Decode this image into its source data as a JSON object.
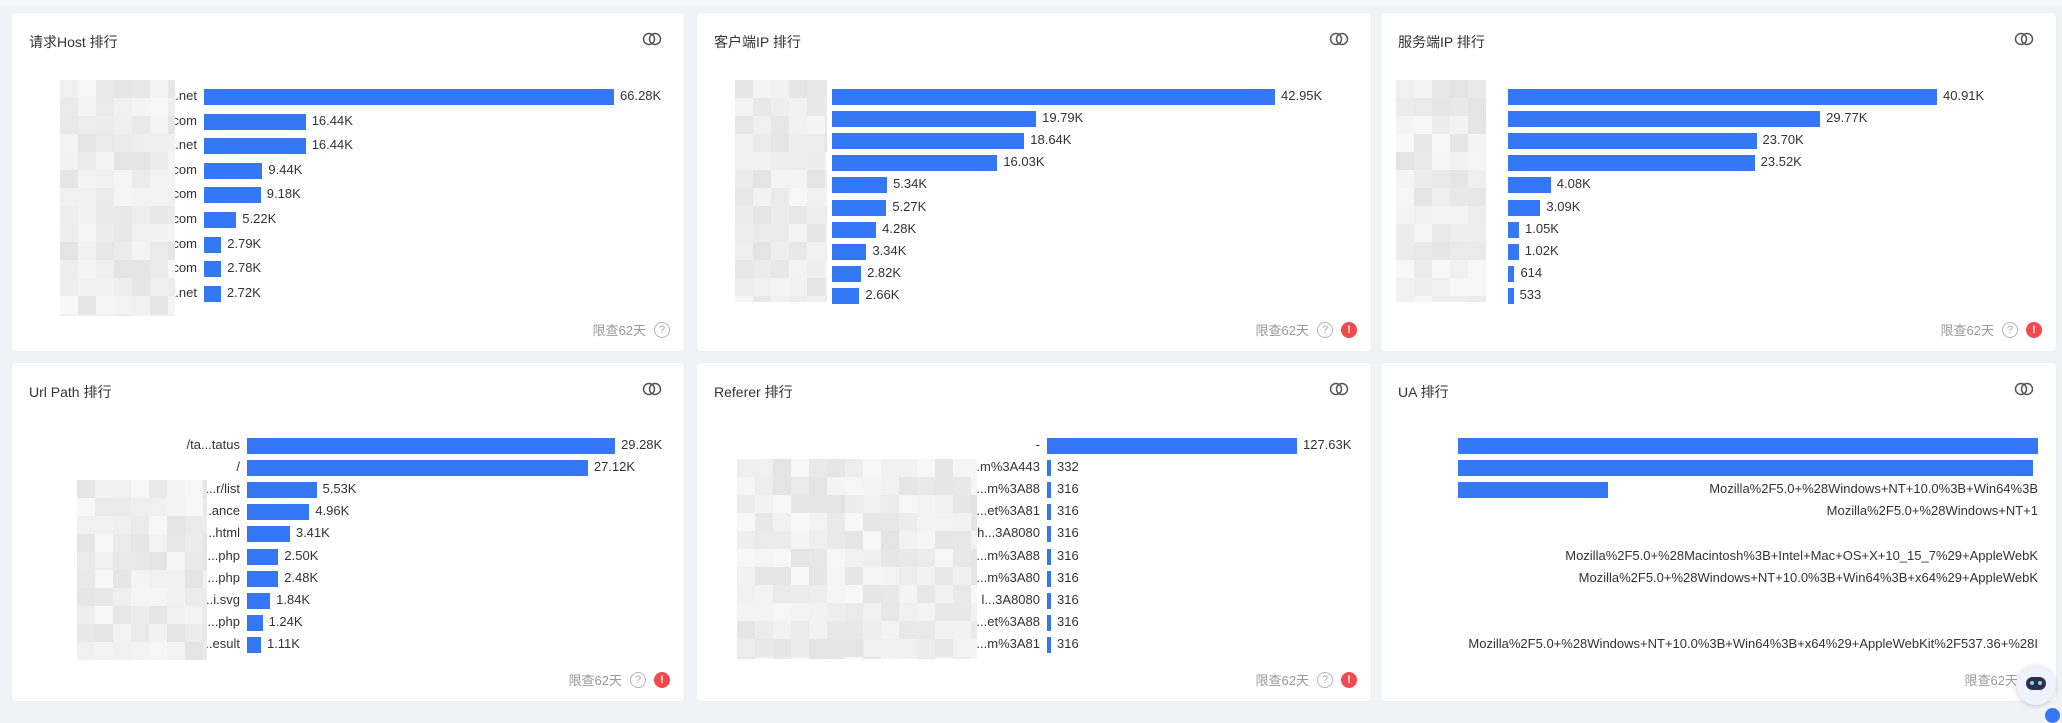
{
  "accent_color": "#3478f6",
  "footer_note": "限查62天",
  "help_icon": "question-circle-icon",
  "warn_icon": "exclamation-circle-icon",
  "view_icon": "view-toggle-icon",
  "chart_data": [
    {
      "type": "bar",
      "title": "请求Host 排行",
      "categories": [
        "c...t.net",
        "...com",
        "...t.net",
        "cls...com",
        "wls...com",
        "dap...com",
        "...com",
        "...com",
        "...t.net"
      ],
      "values": [
        66280,
        16440,
        16440,
        9440,
        9180,
        5220,
        2790,
        2780,
        2720
      ],
      "value_labels": [
        "66.28K",
        "16.44K",
        "16.44K",
        "9.44K",
        "9.18K",
        "5.22K",
        "2.79K",
        "2.78K",
        "2.72K"
      ],
      "footer_warning": false
    },
    {
      "type": "bar",
      "title": "客户端IP 排行",
      "categories": [
        "...19",
        "...93",
        "...233",
        "...154",
        "...153",
        "...236",
        "...30",
        "...81",
        "...235",
        "...155"
      ],
      "values": [
        42950,
        19790,
        18640,
        16030,
        5340,
        5270,
        4280,
        3340,
        2820,
        2660
      ],
      "value_labels": [
        "42.95K",
        "19.79K",
        "18.64K",
        "16.03K",
        "5.34K",
        "5.27K",
        "4.28K",
        "3.34K",
        "2.82K",
        "2.66K"
      ],
      "footer_warning": true
    },
    {
      "type": "bar",
      "title": "服务端IP 排行",
      "categories": [
        "...80",
        "...53",
        "-",
        "...53",
        "...46",
        "...90",
        "...78",
        "...86",
        "...03",
        "...13"
      ],
      "values": [
        40910,
        29770,
        23700,
        23520,
        4080,
        3090,
        1050,
        1020,
        614,
        533
      ],
      "value_labels": [
        "40.91K",
        "29.77K",
        "23.70K",
        "23.52K",
        "4.08K",
        "3.09K",
        "1.05K",
        "1.02K",
        "614",
        "533"
      ],
      "footer_warning": true
    },
    {
      "type": "bar",
      "title": "Url Path 排行",
      "categories": [
        "/ta...tatus",
        "/",
        "...r/list",
        "/taskM...ance",
        "...html",
        "...php",
        "...php",
        "...i.svg",
        "...php",
        "/taskBu...esult"
      ],
      "values": [
        29280,
        27120,
        5530,
        4960,
        3410,
        2500,
        2480,
        1840,
        1240,
        1110
      ],
      "value_labels": [
        "29.28K",
        "27.12K",
        "5.53K",
        "4.96K",
        "3.41K",
        "2.50K",
        "2.48K",
        "1.84K",
        "1.24K",
        "1.11K"
      ],
      "footer_warning": true
    },
    {
      "type": "bar",
      "title": "Referer 排行",
      "categories": [
        "-",
        "h...m%3A443",
        "htt...m%3A88",
        "h...et%3A81",
        "h...3A8080",
        "...m%3A88",
        "...m%3A80",
        "l...3A8080",
        "...et%3A88",
        "http...m%3A81"
      ],
      "values": [
        127630,
        332,
        316,
        316,
        316,
        316,
        316,
        316,
        316,
        316
      ],
      "value_labels": [
        "127.63K",
        "332",
        "316",
        "316",
        "316",
        "316",
        "316",
        "316",
        "316",
        "316"
      ],
      "footer_warning": true
    },
    {
      "type": "bar",
      "title": "UA 排行",
      "categories": [
        "",
        "",
        "Mozilla%2F5.0+%28Windows+NT+10.0%3B+Win64%3B",
        "Mozilla%2F5.0+%28Windows+NT+1",
        "",
        "Mozilla%2F5.0+%28Macintosh%3B+Intel+Mac+OS+X+10_15_7%29+AppleWebK",
        "Mozilla%2F5.0+%28Windows+NT+10.0%3B+Win64%3B+x64%29+AppleWebK",
        "",
        "",
        "Mozilla%2F5.0+%28Windows+NT+10.0%3B+Win64%3B+x64%29+AppleWebKit%2F537.36+%28I"
      ],
      "values": [
        580,
        575,
        150,
        0,
        0,
        0,
        0,
        0,
        0,
        0
      ],
      "value_labels": [
        "",
        "",
        "",
        "",
        "",
        "",
        "",
        "",
        "",
        ""
      ],
      "footer_warning": false
    }
  ]
}
